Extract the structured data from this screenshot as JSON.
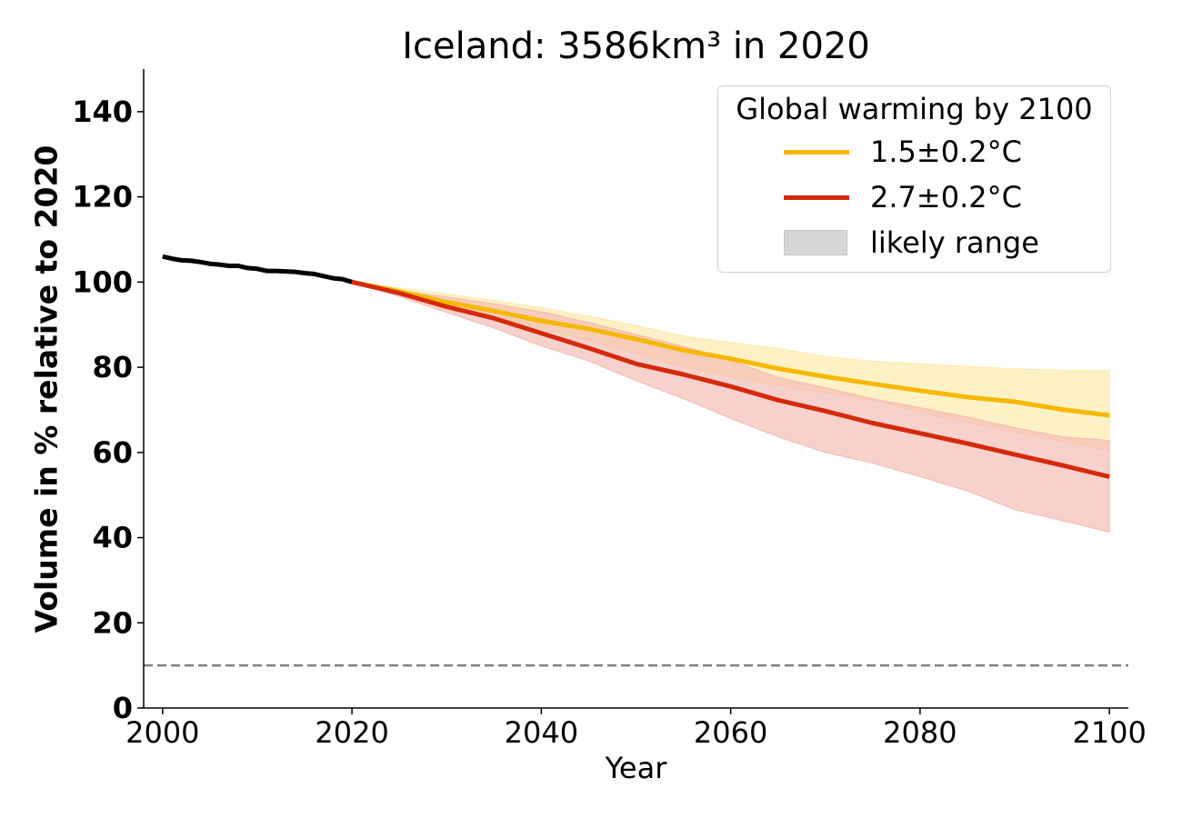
{
  "chart_data": {
    "type": "line",
    "title": "Iceland: 3586km³ in 2020",
    "xlabel": "Year",
    "ylabel": "Volume in % relative to 2020",
    "xlim": [
      1998,
      2102
    ],
    "ylim": [
      0,
      150
    ],
    "xticks": [
      2000,
      2020,
      2040,
      2060,
      2080,
      2100
    ],
    "yticks": [
      0,
      20,
      40,
      60,
      80,
      100,
      120,
      140
    ],
    "reference_line": {
      "y": 10,
      "style": "dashed",
      "color": "#808080"
    },
    "historical": {
      "color": "#000000",
      "x": [
        2000,
        2001,
        2002,
        2003,
        2004,
        2005,
        2006,
        2007,
        2008,
        2009,
        2010,
        2011,
        2012,
        2013,
        2014,
        2015,
        2016,
        2017,
        2018,
        2019,
        2020
      ],
      "y": [
        106,
        105.5,
        105.1,
        105,
        104.7,
        104.3,
        104.1,
        103.8,
        103.8,
        103.3,
        103.1,
        102.6,
        102.6,
        102.5,
        102.4,
        102.1,
        101.9,
        101.4,
        100.9,
        100.7,
        100
      ]
    },
    "legend": {
      "title": "Global warming by 2100",
      "position": "top-right",
      "range_label": "likely range"
    },
    "series": [
      {
        "name": "1.5±0.2°C",
        "color": "#f5b800",
        "band_color": "#fde9a8",
        "x": [
          2020,
          2025,
          2030,
          2035,
          2040,
          2045,
          2050,
          2055,
          2060,
          2065,
          2070,
          2075,
          2080,
          2085,
          2090,
          2095,
          2100
        ],
        "y": [
          100,
          97.8,
          95.3,
          93.2,
          90.9,
          89.0,
          86.6,
          84.0,
          82.0,
          79.7,
          77.8,
          76.1,
          74.5,
          73.0,
          71.9,
          70.1,
          68.7
        ],
        "lower": [
          100,
          97.2,
          94.3,
          91.7,
          89.0,
          86.3,
          83.2,
          80.0,
          77.8,
          75.7,
          74.0,
          72.3,
          69.4,
          67.0,
          64.8,
          62.6,
          60.5
        ],
        "upper": [
          100,
          98.6,
          97.2,
          95.7,
          94.0,
          92.0,
          89.8,
          87.3,
          85.8,
          84.4,
          82.5,
          81.4,
          80.8,
          80.2,
          79.6,
          79.3,
          79.2
        ]
      },
      {
        "name": "2.7±0.2°C",
        "color": "#d42a0c",
        "band_color": "#f2b8b0",
        "x": [
          2020,
          2025,
          2030,
          2035,
          2040,
          2045,
          2050,
          2055,
          2060,
          2065,
          2070,
          2075,
          2080,
          2085,
          2090,
          2095,
          2100
        ],
        "y": [
          100,
          97.4,
          94.2,
          91.5,
          88.0,
          84.5,
          80.8,
          78.3,
          75.5,
          72.3,
          69.7,
          66.9,
          64.5,
          62.1,
          59.5,
          57.0,
          54.3
        ],
        "lower": [
          100,
          96.6,
          92.9,
          89.2,
          85.0,
          81.5,
          76.9,
          72.6,
          68.0,
          63.7,
          60.0,
          57.5,
          54.3,
          51.0,
          46.6,
          44.0,
          41.3
        ],
        "upper": [
          100,
          98.0,
          96.5,
          94.9,
          93.0,
          90.5,
          87.7,
          84.9,
          81.6,
          77.6,
          75.2,
          72.6,
          70.5,
          68.3,
          65.8,
          63.7,
          62.8
        ]
      }
    ]
  }
}
